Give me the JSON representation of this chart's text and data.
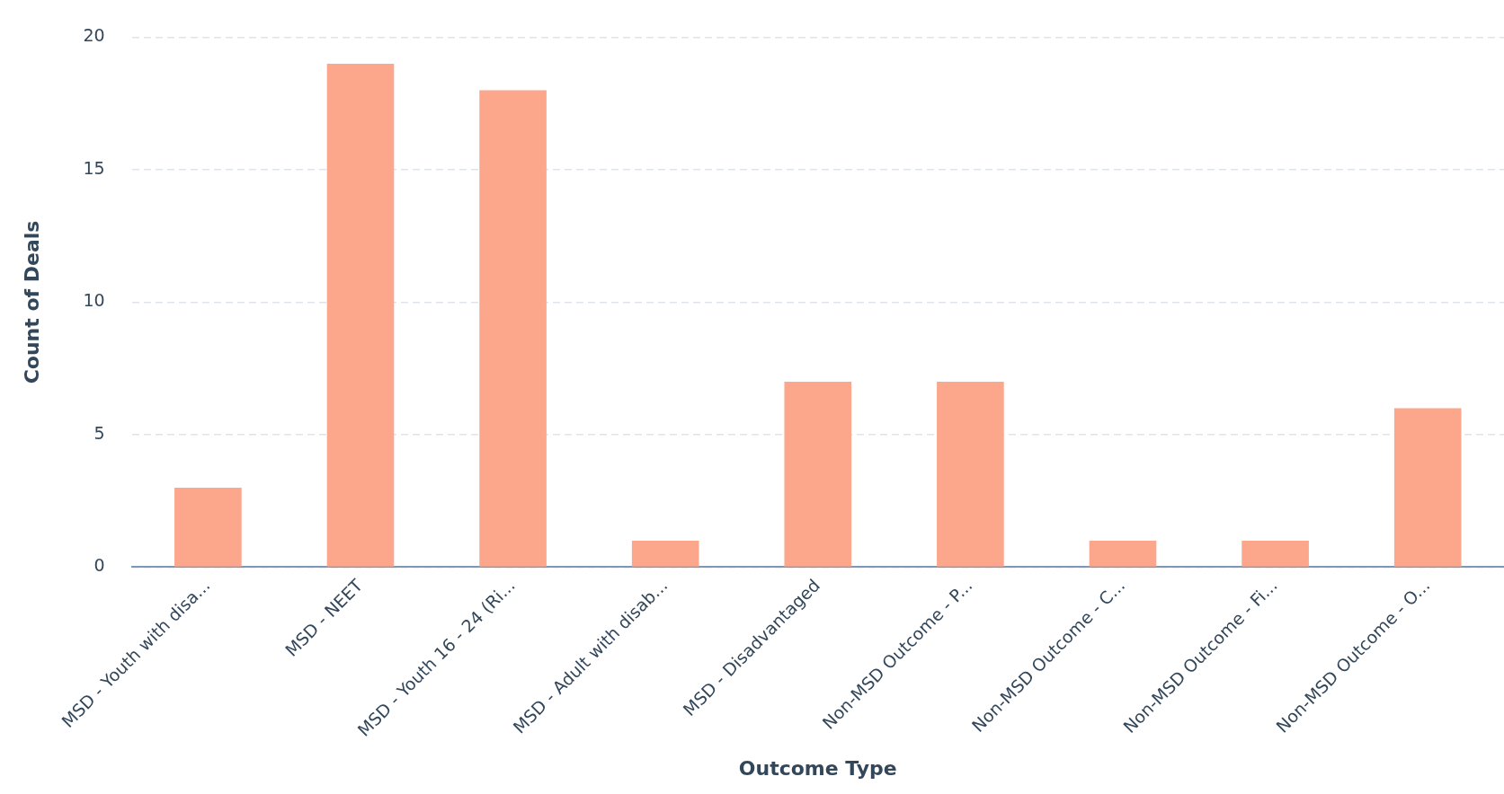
{
  "chart_data": {
    "type": "bar",
    "xlabel": "Outcome Type",
    "ylabel": "Count of Deals",
    "categories": [
      "MSD - Youth with disa...",
      "MSD - NEET",
      "MSD - Youth 16 - 24 (Ri...",
      "MSD - Adult with disab...",
      "MSD - Disadvantaged",
      "Non-MSD Outcome - P...",
      "Non-MSD Outcome - C...",
      "Non-MSD Outcome - Fi...",
      "Non-MSD Outcome - O..."
    ],
    "values": [
      3,
      19,
      18,
      1,
      7,
      7,
      1,
      1,
      6
    ],
    "color": "#fca68b",
    "ylim": [
      0,
      20
    ],
    "yticks": [
      0,
      5,
      10,
      15,
      20
    ],
    "grid": "y",
    "legend": false
  }
}
